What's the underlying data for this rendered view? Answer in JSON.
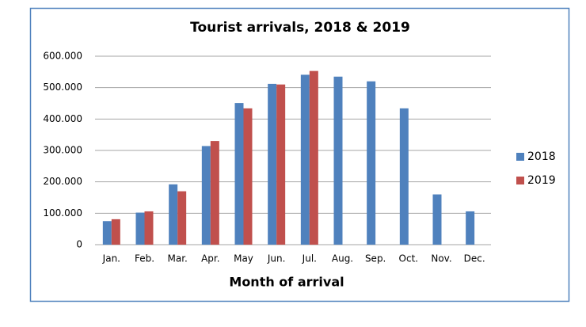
{
  "chart_data": {
    "type": "bar",
    "title": "Tourist arrivals, 2018 & 2019",
    "x_label": "Month of arrival",
    "categories": [
      "Jan.",
      "Feb.",
      "Mar.",
      "Apr.",
      "May",
      "Jun.",
      "Jul.",
      "Aug.",
      "Sep.",
      "Oct.",
      "Nov.",
      "Dec."
    ],
    "series": [
      {
        "name": "2018",
        "color": "#4f81bd",
        "values": [
          75000,
          102000,
          192000,
          314000,
          451000,
          512000,
          541000,
          535000,
          520000,
          434000,
          160000,
          106000
        ]
      },
      {
        "name": "2019",
        "color": "#c0504d",
        "values": [
          81000,
          106000,
          170000,
          330000,
          434000,
          510000,
          553000,
          null,
          null,
          null,
          null,
          null
        ]
      }
    ],
    "ylim": [
      0,
      600000
    ],
    "yticks": [
      0,
      {
        "value": 100000,
        "label": "100.000"
      },
      {
        "value": 200000,
        "label": "200.000"
      },
      {
        "value": 300000,
        "label": "300.000"
      },
      {
        "value": 400000,
        "label": "400.000"
      },
      {
        "value": 500000,
        "label": "500.000"
      },
      {
        "value": 600000,
        "label": "600.000"
      }
    ],
    "grid": true,
    "legend": "right"
  }
}
